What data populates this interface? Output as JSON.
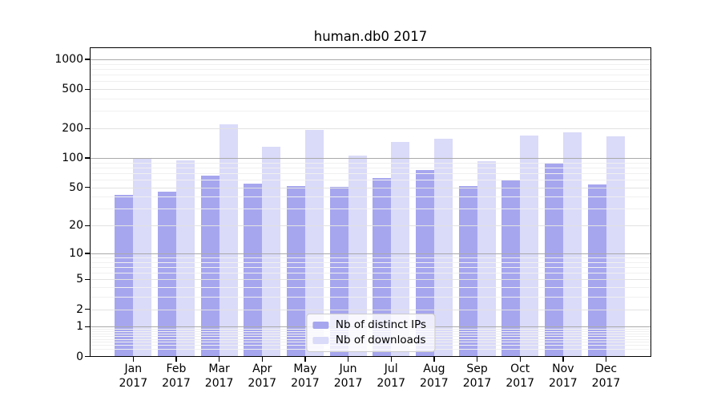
{
  "chart_data": {
    "type": "bar",
    "title": "human.db0 2017",
    "categories": [
      "Jan",
      "Feb",
      "Mar",
      "Apr",
      "May",
      "Jun",
      "Jul",
      "Aug",
      "Sep",
      "Oct",
      "Nov",
      "Dec"
    ],
    "x_year": "2017",
    "series": [
      {
        "name": "Nb of distinct IPs",
        "color": "#a6a6ef",
        "values": [
          42,
          45,
          66,
          55,
          52,
          51,
          62,
          76,
          52,
          60,
          90,
          54
        ]
      },
      {
        "name": "Nb of downloads",
        "color": "#dadaf9",
        "values": [
          100,
          95,
          220,
          130,
          192,
          105,
          145,
          156,
          93,
          168,
          184,
          167
        ]
      }
    ],
    "y_axis": {
      "scale": "log1p",
      "ticks": [
        1000,
        500,
        200,
        100,
        50,
        20,
        10,
        5,
        2,
        1,
        0
      ],
      "top_value": 1270
    },
    "legend": {
      "position": "lower center",
      "entries": [
        "Nb of distinct IPs",
        "Nb of downloads"
      ]
    },
    "grid": true
  }
}
